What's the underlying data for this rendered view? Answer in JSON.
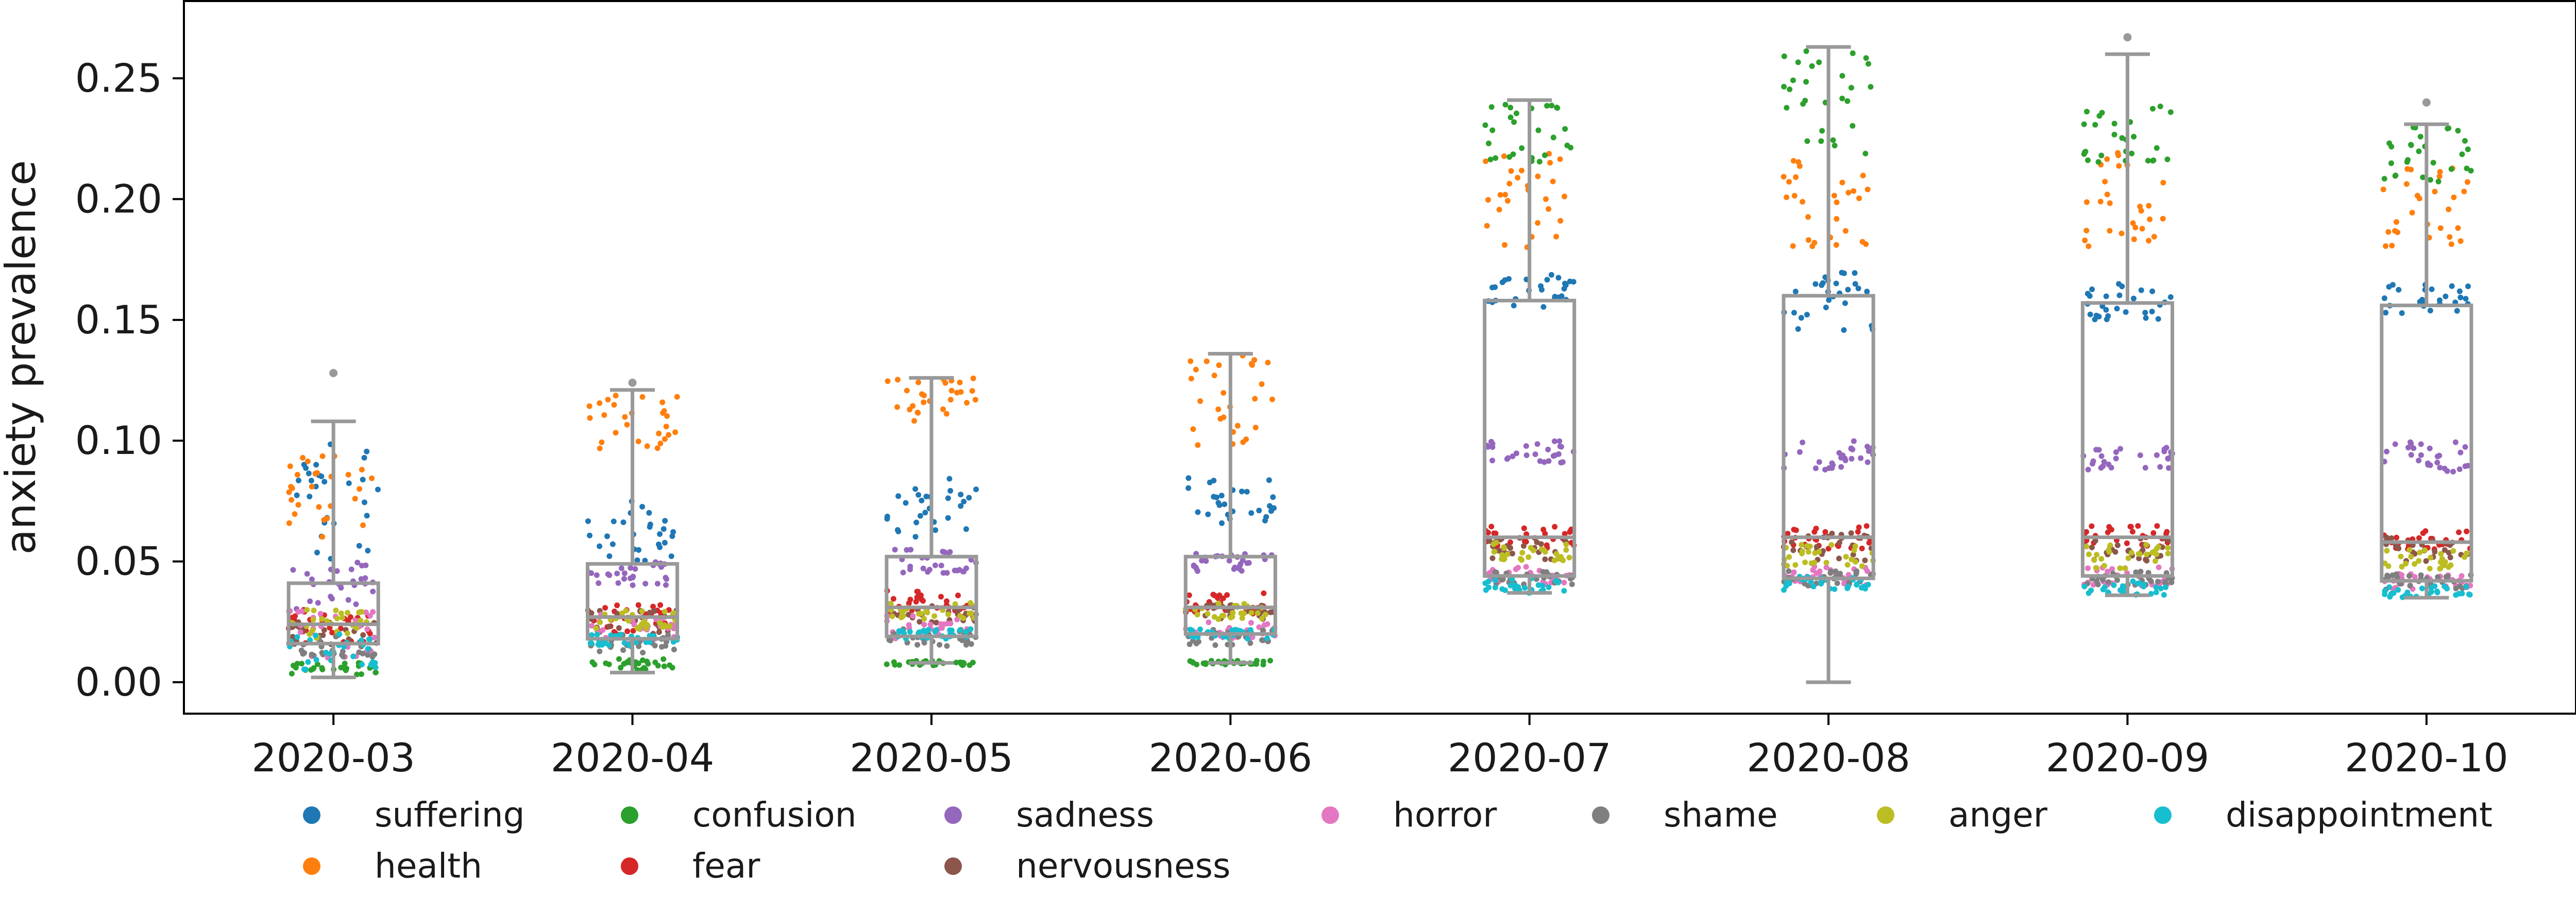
{
  "chart_data": {
    "type": "box+strip",
    "title": "",
    "xlabel": "",
    "ylabel": "anxiety prevalence",
    "ylim": [
      -0.013,
      0.282
    ],
    "yticks": [
      "0.00",
      "0.05",
      "0.10",
      "0.15",
      "0.20",
      "0.25"
    ],
    "ytick_values": [
      0.0,
      0.05,
      0.1,
      0.15,
      0.2,
      0.25
    ],
    "categories": [
      "2020-03",
      "2020-04",
      "2020-05",
      "2020-06",
      "2020-07",
      "2020-08",
      "2020-09",
      "2020-10"
    ],
    "box_color": "#999999",
    "boxes": [
      {
        "month": "2020-03",
        "q1": 0.016,
        "median": 0.024,
        "q3": 0.041,
        "whisker_low": 0.002,
        "whisker_high": 0.108,
        "fliers": [
          0.128
        ]
      },
      {
        "month": "2020-04",
        "q1": 0.018,
        "median": 0.027,
        "q3": 0.049,
        "whisker_low": 0.004,
        "whisker_high": 0.121,
        "fliers": [
          0.124
        ]
      },
      {
        "month": "2020-05",
        "q1": 0.019,
        "median": 0.031,
        "q3": 0.052,
        "whisker_low": 0.008,
        "whisker_high": 0.126,
        "fliers": []
      },
      {
        "month": "2020-06",
        "q1": 0.02,
        "median": 0.031,
        "q3": 0.052,
        "whisker_low": 0.008,
        "whisker_high": 0.136,
        "fliers": []
      },
      {
        "month": "2020-07",
        "q1": 0.044,
        "median": 0.06,
        "q3": 0.158,
        "whisker_low": 0.037,
        "whisker_high": 0.241,
        "fliers": []
      },
      {
        "month": "2020-08",
        "q1": 0.043,
        "median": 0.06,
        "q3": 0.16,
        "whisker_low": 0.0,
        "whisker_high": 0.263,
        "fliers": []
      },
      {
        "month": "2020-09",
        "q1": 0.044,
        "median": 0.06,
        "q3": 0.157,
        "whisker_low": 0.036,
        "whisker_high": 0.26,
        "fliers": [
          0.267
        ]
      },
      {
        "month": "2020-10",
        "q1": 0.042,
        "median": 0.058,
        "q3": 0.156,
        "whisker_low": 0.035,
        "whisker_high": 0.231,
        "fliers": [
          0.24
        ]
      }
    ],
    "series": [
      {
        "name": "suffering",
        "color": "#1f77b4",
        "ranges": [
          [
            0.045,
            0.1
          ],
          [
            0.05,
            0.075
          ],
          [
            0.06,
            0.085
          ],
          [
            0.065,
            0.085
          ],
          [
            0.155,
            0.17
          ],
          [
            0.145,
            0.17
          ],
          [
            0.15,
            0.165
          ],
          [
            0.152,
            0.165
          ]
        ]
      },
      {
        "name": "health",
        "color": "#ff7f0e",
        "ranges": [
          [
            0.06,
            0.095
          ],
          [
            0.095,
            0.121
          ],
          [
            0.108,
            0.126
          ],
          [
            0.095,
            0.136
          ],
          [
            0.18,
            0.22
          ],
          [
            0.18,
            0.22
          ],
          [
            0.18,
            0.22
          ],
          [
            0.18,
            0.215
          ]
        ]
      },
      {
        "name": "confusion",
        "color": "#2ca02c",
        "ranges": [
          [
            0.003,
            0.008
          ],
          [
            0.005,
            0.01
          ],
          [
            0.007,
            0.009
          ],
          [
            0.007,
            0.009
          ],
          [
            0.215,
            0.24
          ],
          [
            0.215,
            0.265
          ],
          [
            0.215,
            0.24
          ],
          [
            0.205,
            0.23
          ]
        ]
      },
      {
        "name": "fear",
        "color": "#d62728",
        "ranges": [
          [
            0.015,
            0.03
          ],
          [
            0.02,
            0.032
          ],
          [
            0.028,
            0.038
          ],
          [
            0.028,
            0.037
          ],
          [
            0.055,
            0.065
          ],
          [
            0.055,
            0.065
          ],
          [
            0.055,
            0.065
          ],
          [
            0.055,
            0.063
          ]
        ]
      },
      {
        "name": "sadness",
        "color": "#9467bd",
        "ranges": [
          [
            0.03,
            0.05
          ],
          [
            0.04,
            0.05
          ],
          [
            0.045,
            0.055
          ],
          [
            0.046,
            0.054
          ],
          [
            0.09,
            0.1
          ],
          [
            0.088,
            0.1
          ],
          [
            0.088,
            0.098
          ],
          [
            0.087,
            0.1
          ]
        ]
      },
      {
        "name": "nervousness",
        "color": "#8c564b",
        "ranges": [
          [
            0.015,
            0.025
          ],
          [
            0.02,
            0.03
          ],
          [
            0.024,
            0.032
          ],
          [
            0.026,
            0.032
          ],
          [
            0.05,
            0.06
          ],
          [
            0.05,
            0.062
          ],
          [
            0.05,
            0.06
          ],
          [
            0.05,
            0.06
          ]
        ]
      },
      {
        "name": "horror",
        "color": "#e377c2",
        "ranges": [
          [
            0.01,
            0.03
          ],
          [
            0.015,
            0.028
          ],
          [
            0.018,
            0.028
          ],
          [
            0.018,
            0.025
          ],
          [
            0.04,
            0.048
          ],
          [
            0.04,
            0.048
          ],
          [
            0.04,
            0.048
          ],
          [
            0.038,
            0.045
          ]
        ]
      },
      {
        "name": "shame",
        "color": "#7f7f7f",
        "ranges": [
          [
            0.01,
            0.02
          ],
          [
            0.012,
            0.02
          ],
          [
            0.015,
            0.022
          ],
          [
            0.015,
            0.022
          ],
          [
            0.04,
            0.046
          ],
          [
            0.04,
            0.046
          ],
          [
            0.04,
            0.046
          ],
          [
            0.038,
            0.045
          ]
        ]
      },
      {
        "name": "anger",
        "color": "#bcbd22",
        "ranges": [
          [
            0.018,
            0.03
          ],
          [
            0.022,
            0.03
          ],
          [
            0.026,
            0.033
          ],
          [
            0.026,
            0.033
          ],
          [
            0.05,
            0.058
          ],
          [
            0.048,
            0.057
          ],
          [
            0.047,
            0.057
          ],
          [
            0.047,
            0.055
          ]
        ]
      },
      {
        "name": "disappointment",
        "color": "#17becf",
        "ranges": [
          [
            0.005,
            0.02
          ],
          [
            0.015,
            0.02
          ],
          [
            0.018,
            0.022
          ],
          [
            0.018,
            0.022
          ],
          [
            0.037,
            0.043
          ],
          [
            0.038,
            0.044
          ],
          [
            0.036,
            0.042
          ],
          [
            0.035,
            0.04
          ]
        ]
      }
    ],
    "legend": {
      "placement": "bottom",
      "columns": [
        [
          "suffering",
          "health"
        ],
        [
          "confusion",
          "fear"
        ],
        [
          "sadness",
          "nervousness"
        ],
        [
          "horror"
        ],
        [
          "shame"
        ],
        [
          "anger"
        ],
        [
          "disappointment"
        ]
      ]
    },
    "grid": false
  }
}
